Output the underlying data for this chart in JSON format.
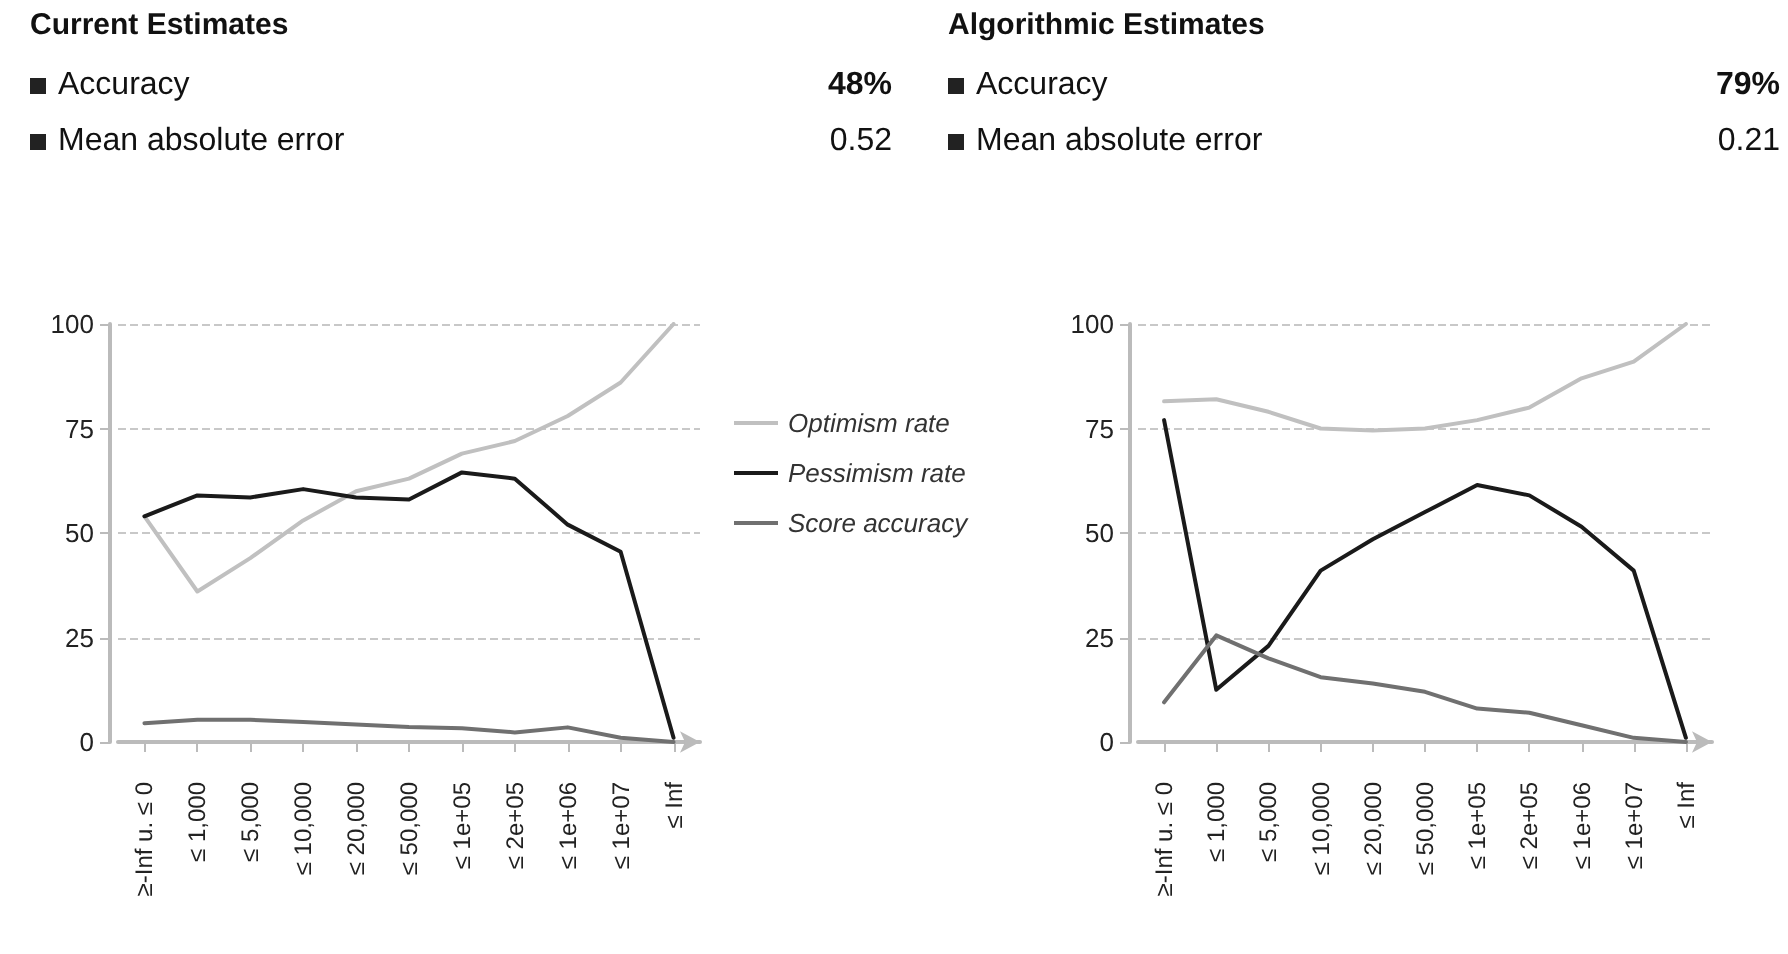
{
  "chart_data": [
    {
      "type": "line",
      "title": "Current Estimates",
      "annotations": [
        "Accuracy",
        "48%",
        "Mean absolute error",
        "0.52"
      ],
      "categories": [
        "≥-Inf u. ≤ 0",
        "≤ 1,000",
        "≤ 5,000",
        "≤ 10,000",
        "≤ 20,000",
        "≤ 50,000",
        "≤ 1e+05",
        "≤ 2e+05",
        "≤ 1e+06",
        "≤ 1e+07",
        "≤ Inf"
      ],
      "series": [
        {
          "name": "Optimism rate",
          "color": "#c0c0c0",
          "values": [
            54,
            36,
            44,
            53,
            60,
            63,
            69,
            72,
            78,
            86,
            100
          ]
        },
        {
          "name": "Pessimism rate",
          "color": "#1a1a1a",
          "values": [
            54,
            59,
            58.5,
            60.5,
            58.5,
            58,
            64.5,
            63,
            52,
            45.5,
            1
          ]
        },
        {
          "name": "Score accuracy",
          "color": "#707070",
          "values": [
            4.5,
            5.3,
            5.3,
            4.8,
            4.2,
            3.6,
            3.3,
            2.3,
            3.5,
            1,
            0
          ]
        }
      ],
      "ylim": [
        0,
        100
      ],
      "yticks": [
        0,
        25,
        50,
        75,
        100
      ],
      "grid": "y",
      "legend": "right",
      "marker": "none"
    },
    {
      "type": "line",
      "title": "Algorithmic Estimates",
      "annotations": [
        "Accuracy",
        "79%",
        "Mean absolute error",
        "0.21"
      ],
      "categories": [
        "≥-Inf u. ≤ 0",
        "≤ 1,000",
        "≤ 5,000",
        "≤ 10,000",
        "≤ 20,000",
        "≤ 50,000",
        "≤ 1e+05",
        "≤ 2e+05",
        "≤ 1e+06",
        "≤ 1e+07",
        "≤ Inf"
      ],
      "series": [
        {
          "color": "#c0c0c0",
          "values": [
            81.5,
            82,
            79,
            75,
            74.5,
            75,
            77,
            80,
            87,
            91,
            100
          ]
        },
        {
          "color": "#1a1a1a",
          "values": [
            77,
            12.5,
            23,
            41,
            48.5,
            55,
            61.5,
            59,
            51.5,
            41,
            1
          ]
        },
        {
          "color": "#707070",
          "values": [
            9.5,
            25.5,
            20,
            15.5,
            14,
            12,
            8,
            7,
            4,
            1,
            0
          ]
        }
      ],
      "ylim": [
        0,
        100
      ],
      "yticks": [
        0,
        25,
        50,
        75,
        100
      ],
      "grid": "y",
      "legend": false,
      "marker": "none"
    }
  ]
}
